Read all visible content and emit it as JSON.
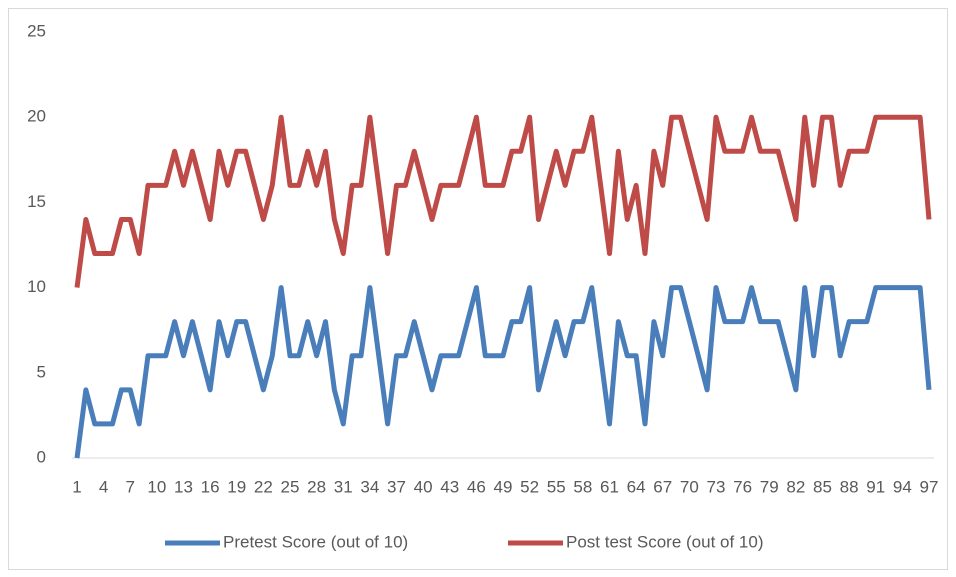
{
  "chart_data": {
    "type": "line",
    "x": [
      1,
      2,
      3,
      4,
      5,
      6,
      7,
      8,
      9,
      10,
      11,
      12,
      13,
      14,
      15,
      16,
      17,
      18,
      19,
      20,
      21,
      22,
      23,
      24,
      25,
      26,
      27,
      28,
      29,
      30,
      31,
      32,
      33,
      34,
      35,
      36,
      37,
      38,
      39,
      40,
      41,
      42,
      43,
      44,
      45,
      46,
      47,
      48,
      49,
      50,
      51,
      52,
      53,
      54,
      55,
      56,
      57,
      58,
      59,
      60,
      61,
      62,
      63,
      64,
      65,
      66,
      67,
      68,
      69,
      70,
      71,
      72,
      73,
      74,
      75,
      76,
      77,
      78,
      79,
      80,
      81,
      82,
      83,
      84,
      85,
      86,
      87,
      88,
      89,
      90,
      91,
      92,
      93,
      94,
      95,
      96,
      97
    ],
    "xlim": [
      1,
      97
    ],
    "xticks": [
      1,
      4,
      7,
      10,
      13,
      16,
      19,
      22,
      25,
      28,
      31,
      34,
      37,
      40,
      43,
      46,
      49,
      52,
      55,
      58,
      61,
      64,
      67,
      70,
      73,
      76,
      79,
      82,
      85,
      88,
      91,
      94,
      97
    ],
    "ylim": [
      0,
      25
    ],
    "yticks": [
      0,
      5,
      10,
      15,
      20,
      25
    ],
    "grid": false,
    "legend": "bottom",
    "series": [
      {
        "name": "Pretest Score (out of 10)",
        "color": "#4a7ebb",
        "values": [
          0,
          4,
          2,
          2,
          2,
          4,
          4,
          2,
          6,
          6,
          6,
          8,
          6,
          8,
          6,
          4,
          8,
          6,
          8,
          8,
          6,
          4,
          6,
          10,
          6,
          6,
          8,
          6,
          8,
          4,
          2,
          6,
          6,
          10,
          6,
          2,
          6,
          6,
          8,
          6,
          4,
          6,
          6,
          6,
          8,
          10,
          6,
          6,
          6,
          8,
          8,
          10,
          4,
          6,
          8,
          6,
          8,
          8,
          10,
          6,
          2,
          8,
          6,
          6,
          2,
          8,
          6,
          10,
          10,
          8,
          6,
          4,
          10,
          8,
          8,
          8,
          10,
          8,
          8,
          8,
          6,
          4,
          10,
          6,
          10,
          10,
          6,
          8,
          8,
          8,
          10,
          10,
          10,
          10,
          10,
          10,
          4
        ]
      },
      {
        "name": "Post test Score (out of 10)",
        "color": "#be4b48",
        "values": [
          10,
          14,
          12,
          12,
          12,
          14,
          14,
          12,
          16,
          16,
          16,
          18,
          16,
          18,
          16,
          14,
          18,
          16,
          18,
          18,
          16,
          14,
          16,
          20,
          16,
          16,
          18,
          16,
          18,
          14,
          12,
          16,
          16,
          20,
          16,
          12,
          16,
          16,
          18,
          16,
          14,
          16,
          16,
          16,
          18,
          20,
          16,
          16,
          16,
          18,
          18,
          20,
          14,
          16,
          18,
          16,
          18,
          18,
          20,
          16,
          12,
          18,
          14,
          16,
          12,
          18,
          16,
          20,
          20,
          18,
          16,
          14,
          20,
          18,
          18,
          18,
          20,
          18,
          18,
          18,
          16,
          14,
          20,
          16,
          20,
          20,
          16,
          18,
          18,
          18,
          20,
          20,
          20,
          20,
          20,
          20,
          14
        ]
      }
    ]
  }
}
